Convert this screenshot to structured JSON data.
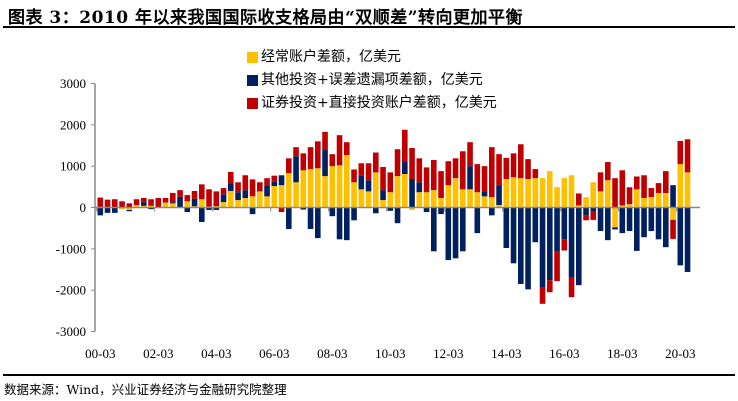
{
  "title": "图表 3：2010 年以来我国国际收支格局由“双顺差”转向更加平衡",
  "source": "数据来源：Wind，兴业证券经济与金融研究院整理",
  "chart_data": {
    "type": "bar",
    "stacked": true,
    "ylim": [
      -3000,
      3000
    ],
    "yticks": [
      3000,
      2000,
      1000,
      0,
      -1000,
      -2000,
      -3000
    ],
    "xtick_labels": [
      "00-03",
      "02-03",
      "04-03",
      "06-03",
      "08-03",
      "10-03",
      "12-03",
      "14-03",
      "16-03",
      "18-03",
      "20-03"
    ],
    "grid": false,
    "legend_position": "top-center",
    "categories": [
      "00-03",
      "00-06",
      "00-09",
      "00-12",
      "01-03",
      "01-06",
      "01-09",
      "01-12",
      "02-03",
      "02-06",
      "02-09",
      "02-12",
      "03-03",
      "03-06",
      "03-09",
      "03-12",
      "04-03",
      "04-06",
      "04-09",
      "04-12",
      "05-03",
      "05-06",
      "05-09",
      "05-12",
      "06-03",
      "06-06",
      "06-09",
      "06-12",
      "07-03",
      "07-06",
      "07-09",
      "07-12",
      "08-03",
      "08-06",
      "08-09",
      "08-12",
      "09-03",
      "09-06",
      "09-09",
      "09-12",
      "10-03",
      "10-06",
      "10-09",
      "10-12",
      "11-03",
      "11-06",
      "11-09",
      "11-12",
      "12-03",
      "12-06",
      "12-09",
      "12-12",
      "13-03",
      "13-06",
      "13-09",
      "13-12",
      "14-03",
      "14-06",
      "14-09",
      "14-12",
      "15-03",
      "15-06",
      "15-09",
      "15-12",
      "16-03",
      "16-06",
      "16-09",
      "16-12",
      "17-03",
      "17-06",
      "17-09",
      "17-12",
      "18-03",
      "18-06",
      "18-09",
      "18-12",
      "19-03",
      "19-06",
      "19-09",
      "19-12",
      "20-03",
      "20-06"
    ],
    "series": [
      {
        "name": "经常账户差额，亿美元",
        "color": "#FFC000",
        "values": [
          10,
          10,
          0,
          -40,
          -60,
          60,
          40,
          40,
          0,
          120,
          100,
          0,
          150,
          30,
          200,
          20,
          30,
          130,
          400,
          180,
          230,
          270,
          390,
          270,
          520,
          540,
          830,
          610,
          900,
          930,
          950,
          760,
          1000,
          1020,
          1270,
          610,
          440,
          390,
          850,
          180,
          370,
          760,
          810,
          -60,
          370,
          370,
          420,
          230,
          540,
          710,
          440,
          440,
          370,
          270,
          250,
          60,
          690,
          730,
          710,
          690,
          710,
          710,
          880,
          490,
          710,
          780,
          50,
          250,
          610,
          390,
          660,
          -480,
          50,
          80,
          440,
          230,
          250,
          350,
          350,
          -300,
          1050,
          850
        ]
      },
      {
        "name": "其他投资+误差遗漏项差额，亿美元",
        "color": "#002060",
        "values": [
          -190,
          -130,
          -130,
          0,
          -30,
          0,
          90,
          -40,
          0,
          0,
          30,
          260,
          -110,
          180,
          -350,
          -60,
          -60,
          190,
          190,
          190,
          190,
          -160,
          0,
          270,
          100,
          240,
          -520,
          630,
          -50,
          -520,
          -740,
          630,
          -210,
          -770,
          -790,
          -310,
          340,
          270,
          -140,
          240,
          -80,
          -380,
          290,
          690,
          240,
          -110,
          -1060,
          -160,
          -1270,
          -1230,
          -1060,
          560,
          -620,
          120,
          -190,
          480,
          -980,
          -1350,
          -1850,
          -1980,
          -840,
          -1940,
          -1760,
          -1070,
          -770,
          -1700,
          -1880,
          -190,
          -100,
          -570,
          -790,
          -50,
          -620,
          -570,
          -1050,
          -720,
          -570,
          -770,
          -960,
          540,
          -1400,
          -1560
        ]
      },
      {
        "name": "证券投资+直接投资账户差额，亿美元",
        "color": "#C00000",
        "values": [
          230,
          180,
          200,
          150,
          100,
          140,
          100,
          160,
          230,
          110,
          220,
          160,
          150,
          190,
          360,
          420,
          360,
          150,
          270,
          240,
          360,
          410,
          220,
          170,
          150,
          -110,
          360,
          220,
          410,
          530,
          650,
          440,
          290,
          730,
          310,
          310,
          290,
          410,
          480,
          560,
          480,
          650,
          780,
          750,
          580,
          600,
          730,
          650,
          580,
          480,
          920,
          580,
          680,
          610,
          1210,
          750,
          510,
          580,
          820,
          480,
          220,
          -390,
          -290,
          -710,
          -270,
          -470,
          290,
          -120,
          -200,
          460,
          440,
          710,
          850,
          410,
          310,
          550,
          220,
          240,
          530,
          -460,
          560,
          800
        ]
      }
    ]
  }
}
